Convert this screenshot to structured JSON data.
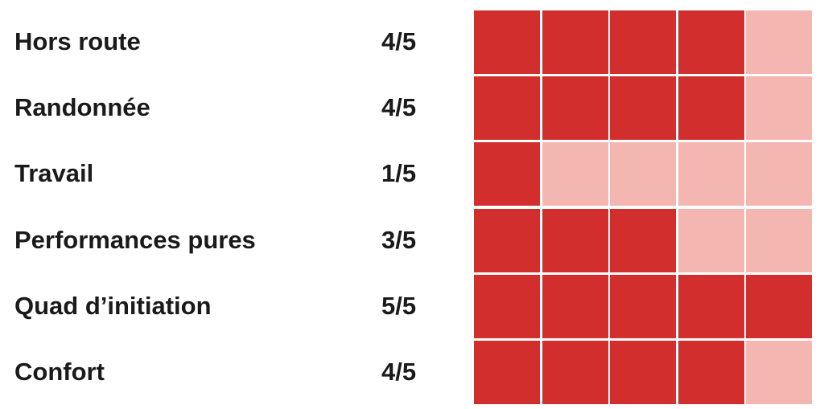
{
  "chart_data": {
    "type": "rating-grid",
    "max": 5,
    "colors": {
      "filled": "#D22E2E",
      "empty": "#F4B6B0"
    },
    "rows": [
      {
        "label": "Hors route",
        "value": 4,
        "score_text": "4/5"
      },
      {
        "label": "Randonnée",
        "value": 4,
        "score_text": "4/5"
      },
      {
        "label": "Travail",
        "value": 1,
        "score_text": "1/5"
      },
      {
        "label": "Performances pures",
        "value": 3,
        "score_text": "3/5"
      },
      {
        "label": "Quad d’initiation",
        "value": 5,
        "score_text": "5/5"
      },
      {
        "label": "Confort",
        "value": 4,
        "score_text": "4/5"
      }
    ]
  }
}
